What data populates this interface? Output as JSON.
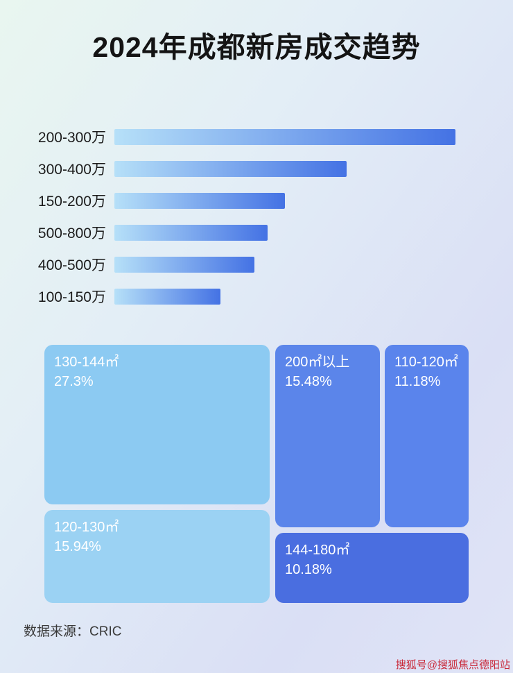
{
  "page": {
    "title": "2024年成都新房成交趋势",
    "source_label": "数据来源：CRIC",
    "watermark": "搜狐号@搜狐焦点德阳站"
  },
  "chart_data": [
    {
      "type": "bar",
      "orientation": "horizontal",
      "title": "2024年成都新房成交趋势",
      "categories": [
        "200-300万",
        "300-400万",
        "150-200万",
        "500-800万",
        "400-500万",
        "100-150万"
      ],
      "values": [
        100,
        68,
        50,
        45,
        41,
        31
      ],
      "value_note": "relative bar length as % of longest bar; no numeric axis or data labels shown",
      "bar_gradient": [
        "#b6e0f8",
        "#4472e4"
      ],
      "grid": false,
      "legend": false
    },
    {
      "type": "treemap",
      "items": [
        {
          "label": "130-144㎡",
          "value": 27.3,
          "display": "27.3%",
          "color": "#8ccaf2"
        },
        {
          "label": "120-130㎡",
          "value": 15.94,
          "display": "15.94%",
          "color": "#9bd2f3"
        },
        {
          "label": "200㎡以上",
          "value": 15.48,
          "display": "15.48%",
          "color": "#5b85ea"
        },
        {
          "label": "110-120㎡",
          "value": 11.18,
          "display": "11.18%",
          "color": "#5a84ec"
        },
        {
          "label": "144-180㎡",
          "value": 10.18,
          "display": "10.18%",
          "color": "#4a6ee0"
        }
      ]
    }
  ]
}
